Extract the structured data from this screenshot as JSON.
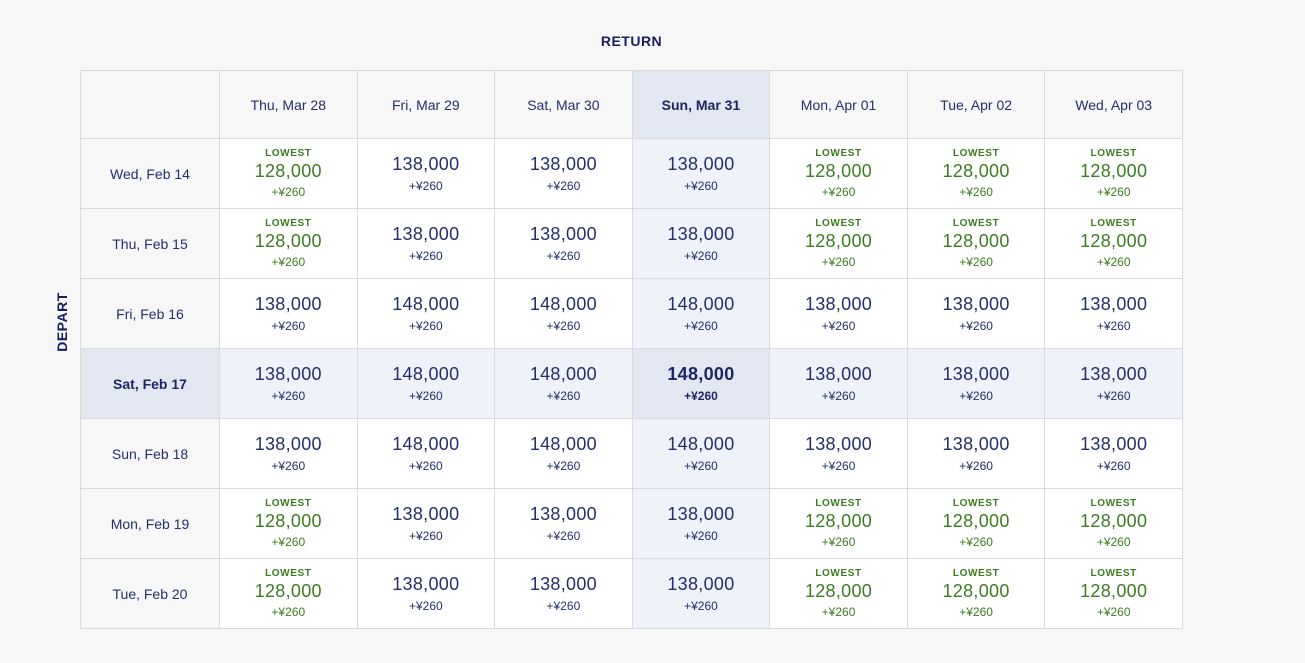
{
  "axis_labels": {
    "return": "RETURN",
    "depart": "DEPART"
  },
  "badges": {
    "lowest": "LOWEST"
  },
  "colors": {
    "page_background": "#f7f7f8",
    "navy_text": "#242f6b",
    "green_lowest": "#3c7d20",
    "selected_header_background": "#e3e7f1",
    "selected_row_column_background": "#eff2f8",
    "cell_background": "#ffffff",
    "grid_border": "#dadadc"
  },
  "calendar": {
    "return_dates": [
      "Thu, Mar 28",
      "Fri, Mar 29",
      "Sat, Mar 30",
      "Sun, Mar 31",
      "Mon, Apr 01",
      "Tue, Apr 02",
      "Wed, Apr 03"
    ],
    "selected_return_index": 3,
    "selected_depart_index": 3,
    "selected_return_date": "Sun, Mar 31",
    "selected_depart_date": "Sat, Feb 17",
    "selected_fare": {
      "price": "148,000",
      "surcharge": "+¥260"
    },
    "rows": [
      {
        "depart": "Wed, Feb 14",
        "cells": [
          {
            "price": "128,000",
            "surcharge": "+¥260",
            "lowest": true
          },
          {
            "price": "138,000",
            "surcharge": "+¥260",
            "lowest": false
          },
          {
            "price": "138,000",
            "surcharge": "+¥260",
            "lowest": false
          },
          {
            "price": "138,000",
            "surcharge": "+¥260",
            "lowest": false
          },
          {
            "price": "128,000",
            "surcharge": "+¥260",
            "lowest": true
          },
          {
            "price": "128,000",
            "surcharge": "+¥260",
            "lowest": true
          },
          {
            "price": "128,000",
            "surcharge": "+¥260",
            "lowest": true
          }
        ]
      },
      {
        "depart": "Thu, Feb 15",
        "cells": [
          {
            "price": "128,000",
            "surcharge": "+¥260",
            "lowest": true
          },
          {
            "price": "138,000",
            "surcharge": "+¥260",
            "lowest": false
          },
          {
            "price": "138,000",
            "surcharge": "+¥260",
            "lowest": false
          },
          {
            "price": "138,000",
            "surcharge": "+¥260",
            "lowest": false
          },
          {
            "price": "128,000",
            "surcharge": "+¥260",
            "lowest": true
          },
          {
            "price": "128,000",
            "surcharge": "+¥260",
            "lowest": true
          },
          {
            "price": "128,000",
            "surcharge": "+¥260",
            "lowest": true
          }
        ]
      },
      {
        "depart": "Fri, Feb 16",
        "cells": [
          {
            "price": "138,000",
            "surcharge": "+¥260",
            "lowest": false
          },
          {
            "price": "148,000",
            "surcharge": "+¥260",
            "lowest": false
          },
          {
            "price": "148,000",
            "surcharge": "+¥260",
            "lowest": false
          },
          {
            "price": "148,000",
            "surcharge": "+¥260",
            "lowest": false
          },
          {
            "price": "138,000",
            "surcharge": "+¥260",
            "lowest": false
          },
          {
            "price": "138,000",
            "surcharge": "+¥260",
            "lowest": false
          },
          {
            "price": "138,000",
            "surcharge": "+¥260",
            "lowest": false
          }
        ]
      },
      {
        "depart": "Sat, Feb 17",
        "cells": [
          {
            "price": "138,000",
            "surcharge": "+¥260",
            "lowest": false
          },
          {
            "price": "148,000",
            "surcharge": "+¥260",
            "lowest": false
          },
          {
            "price": "148,000",
            "surcharge": "+¥260",
            "lowest": false
          },
          {
            "price": "148,000",
            "surcharge": "+¥260",
            "lowest": false
          },
          {
            "price": "138,000",
            "surcharge": "+¥260",
            "lowest": false
          },
          {
            "price": "138,000",
            "surcharge": "+¥260",
            "lowest": false
          },
          {
            "price": "138,000",
            "surcharge": "+¥260",
            "lowest": false
          }
        ]
      },
      {
        "depart": "Sun, Feb 18",
        "cells": [
          {
            "price": "138,000",
            "surcharge": "+¥260",
            "lowest": false
          },
          {
            "price": "148,000",
            "surcharge": "+¥260",
            "lowest": false
          },
          {
            "price": "148,000",
            "surcharge": "+¥260",
            "lowest": false
          },
          {
            "price": "148,000",
            "surcharge": "+¥260",
            "lowest": false
          },
          {
            "price": "138,000",
            "surcharge": "+¥260",
            "lowest": false
          },
          {
            "price": "138,000",
            "surcharge": "+¥260",
            "lowest": false
          },
          {
            "price": "138,000",
            "surcharge": "+¥260",
            "lowest": false
          }
        ]
      },
      {
        "depart": "Mon, Feb 19",
        "cells": [
          {
            "price": "128,000",
            "surcharge": "+¥260",
            "lowest": true
          },
          {
            "price": "138,000",
            "surcharge": "+¥260",
            "lowest": false
          },
          {
            "price": "138,000",
            "surcharge": "+¥260",
            "lowest": false
          },
          {
            "price": "138,000",
            "surcharge": "+¥260",
            "lowest": false
          },
          {
            "price": "128,000",
            "surcharge": "+¥260",
            "lowest": true
          },
          {
            "price": "128,000",
            "surcharge": "+¥260",
            "lowest": true
          },
          {
            "price": "128,000",
            "surcharge": "+¥260",
            "lowest": true
          }
        ]
      },
      {
        "depart": "Tue, Feb 20",
        "cells": [
          {
            "price": "128,000",
            "surcharge": "+¥260",
            "lowest": true
          },
          {
            "price": "138,000",
            "surcharge": "+¥260",
            "lowest": false
          },
          {
            "price": "138,000",
            "surcharge": "+¥260",
            "lowest": false
          },
          {
            "price": "138,000",
            "surcharge": "+¥260",
            "lowest": false
          },
          {
            "price": "128,000",
            "surcharge": "+¥260",
            "lowest": true
          },
          {
            "price": "128,000",
            "surcharge": "+¥260",
            "lowest": true
          },
          {
            "price": "128,000",
            "surcharge": "+¥260",
            "lowest": true
          }
        ]
      }
    ]
  }
}
